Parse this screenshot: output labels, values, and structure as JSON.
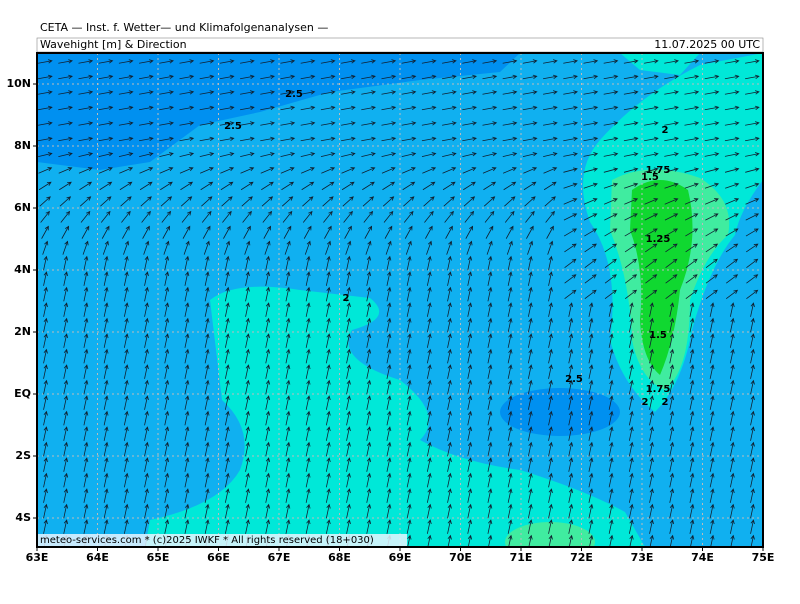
{
  "header": {
    "title": "CETA — Inst. f. Wetter— und Klimafolgenanalysen —",
    "subtitle": "Wavehight [m] & Direction",
    "date": "11.07.2025 00 UTC"
  },
  "map": {
    "lat_labels": [
      "10N",
      "8N",
      "6N",
      "4N",
      "2N",
      "EQ",
      "2S",
      "4S"
    ],
    "lon_labels": [
      "63E",
      "64E",
      "65E",
      "66E",
      "67E",
      "68E",
      "69E",
      "70E",
      "71E",
      "72E",
      "73E",
      "74E",
      "75E"
    ],
    "contour_labels": [
      "2.5",
      "2.5",
      "2",
      "2",
      "1.75",
      "1.5",
      "1.25",
      "2",
      "1.5",
      "2.5",
      "1.75",
      "2"
    ],
    "footer": "meteo-services.com * (c)2025 IWKF * All rights reserved (18+030)"
  }
}
